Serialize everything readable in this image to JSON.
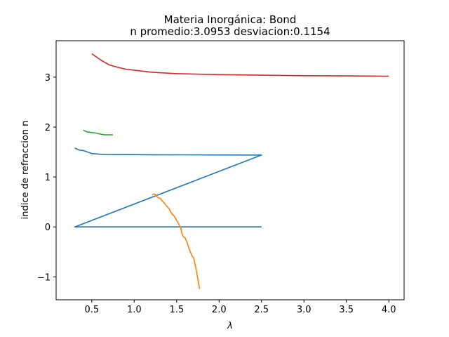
{
  "chart_data": {
    "type": "line",
    "title": "Materia Inorgánica: Bond",
    "subtitle": "n promedio:3.0953 desviacion:0.1154",
    "xlabel": "λ",
    "ylabel": "indice de refraccion n",
    "xlim": [
      0.08,
      4.18
    ],
    "ylim": [
      -1.46,
      3.73
    ],
    "xticks": [
      "0.5",
      "1.0",
      "1.5",
      "2.0",
      "2.5",
      "3.0",
      "3.5",
      "4.0"
    ],
    "xtick_values": [
      0.5,
      1.0,
      1.5,
      2.0,
      2.5,
      3.0,
      3.5,
      4.0
    ],
    "yticks": [
      "−1",
      "0",
      "1",
      "2",
      "3"
    ],
    "ytick_values": [
      -1,
      0,
      1,
      2,
      3
    ],
    "grid": false,
    "series": [
      {
        "color": "#1f77b4",
        "x": [
          0.3,
          0.35,
          0.4,
          0.5,
          0.6,
          0.7,
          0.8,
          1.0,
          1.2,
          1.5,
          2.0,
          2.5,
          0.3,
          2.5
        ],
        "y": [
          1.58,
          1.54,
          1.53,
          1.47,
          1.455,
          1.452,
          1.45,
          1.448,
          1.446,
          1.444,
          1.442,
          1.44,
          0.0,
          0.0
        ]
      },
      {
        "color": "#ff7f0e",
        "x": [
          1.21,
          1.23,
          1.25,
          1.27,
          1.29,
          1.31,
          1.33,
          1.36,
          1.38,
          1.41,
          1.43,
          1.45,
          1.47,
          1.49,
          1.51,
          1.53,
          1.55,
          1.56,
          1.58,
          1.6,
          1.62,
          1.65,
          1.68,
          1.7,
          1.73,
          1.75,
          1.77
        ],
        "y": [
          0.64,
          0.66,
          0.65,
          0.6,
          0.58,
          0.57,
          0.52,
          0.47,
          0.42,
          0.37,
          0.3,
          0.25,
          0.22,
          0.16,
          0.1,
          0.04,
          -0.02,
          -0.12,
          -0.2,
          -0.22,
          -0.3,
          -0.45,
          -0.58,
          -0.62,
          -0.85,
          -1.05,
          -1.24
        ]
      },
      {
        "color": "#2ca02c",
        "x": [
          0.4,
          0.45,
          0.5,
          0.55,
          0.6,
          0.65,
          0.7,
          0.75
        ],
        "y": [
          1.94,
          1.9,
          1.89,
          1.88,
          1.86,
          1.845,
          1.845,
          1.845
        ]
      },
      {
        "color": "#d62728",
        "x": [
          0.5,
          0.6,
          0.7,
          0.8,
          0.9,
          1.0,
          1.2,
          1.5,
          2.0,
          2.5,
          3.0,
          3.5,
          4.0
        ],
        "y": [
          3.47,
          3.35,
          3.25,
          3.2,
          3.16,
          3.14,
          3.1,
          3.07,
          3.05,
          3.04,
          3.03,
          3.025,
          3.02
        ]
      }
    ]
  }
}
